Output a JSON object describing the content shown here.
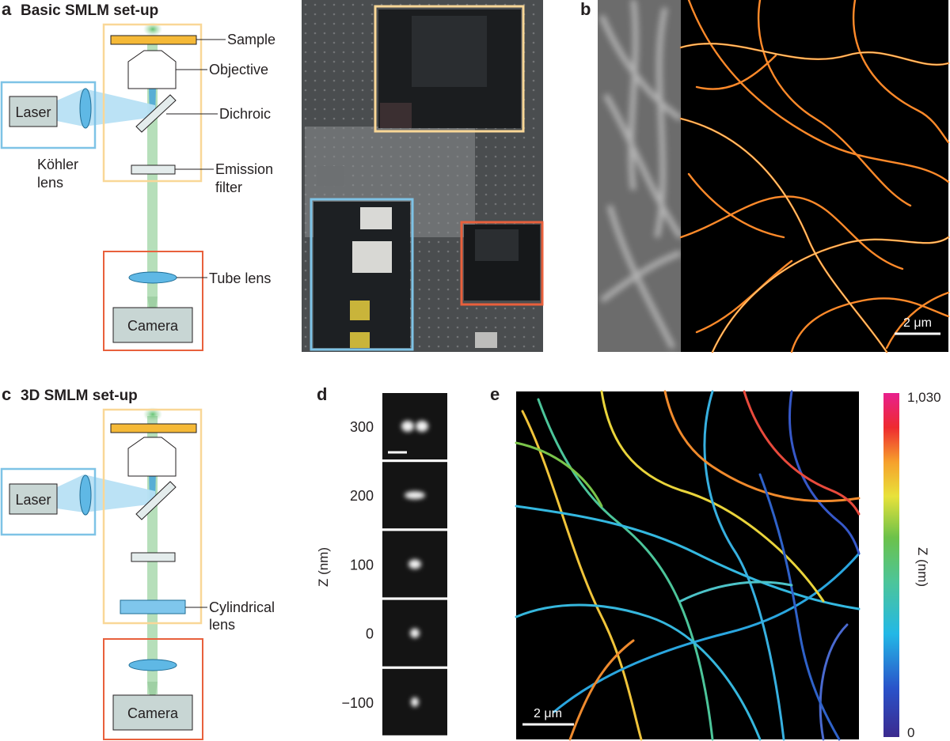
{
  "panel_a": {
    "letter": "a",
    "title": "Basic SMLM set-up",
    "labels": {
      "sample": "Sample",
      "objective": "Objective",
      "dichroic": "Dichroic",
      "emission_line1": "Emission",
      "emission_line2": "filter",
      "tube_lens": "Tube lens",
      "laser": "Laser",
      "kohler_line1": "Köhler",
      "kohler_line2": "lens",
      "camera": "Camera"
    }
  },
  "panel_b": {
    "letter": "b",
    "scale_bar": "2 μm"
  },
  "panel_c": {
    "letter": "c",
    "title": "3D SMLM set-up",
    "labels": {
      "laser": "Laser",
      "cylindrical_line1": "Cylindrical",
      "cylindrical_line2": "lens",
      "camera": "Camera"
    }
  },
  "panel_d": {
    "letter": "d",
    "axis_label": "Z (nm)",
    "ticks": [
      "300",
      "200",
      "100",
      "0",
      "−100"
    ]
  },
  "panel_e": {
    "letter": "e",
    "scale_bar": "2 μm",
    "colorbar": {
      "label": "Z (nm)",
      "max_label": "1,030",
      "min_label": "0"
    }
  },
  "colors": {
    "sample_box": "#f9d797",
    "camera_box": "#e8603c",
    "laser_box": "#7ec3e6",
    "sample_plate": "#f5b937",
    "lens_fill": "#5fb8e5",
    "beam_green": "#9fd4a4",
    "beam_blue": "#a4d6ef",
    "grey_box": "#c8d6d4"
  }
}
